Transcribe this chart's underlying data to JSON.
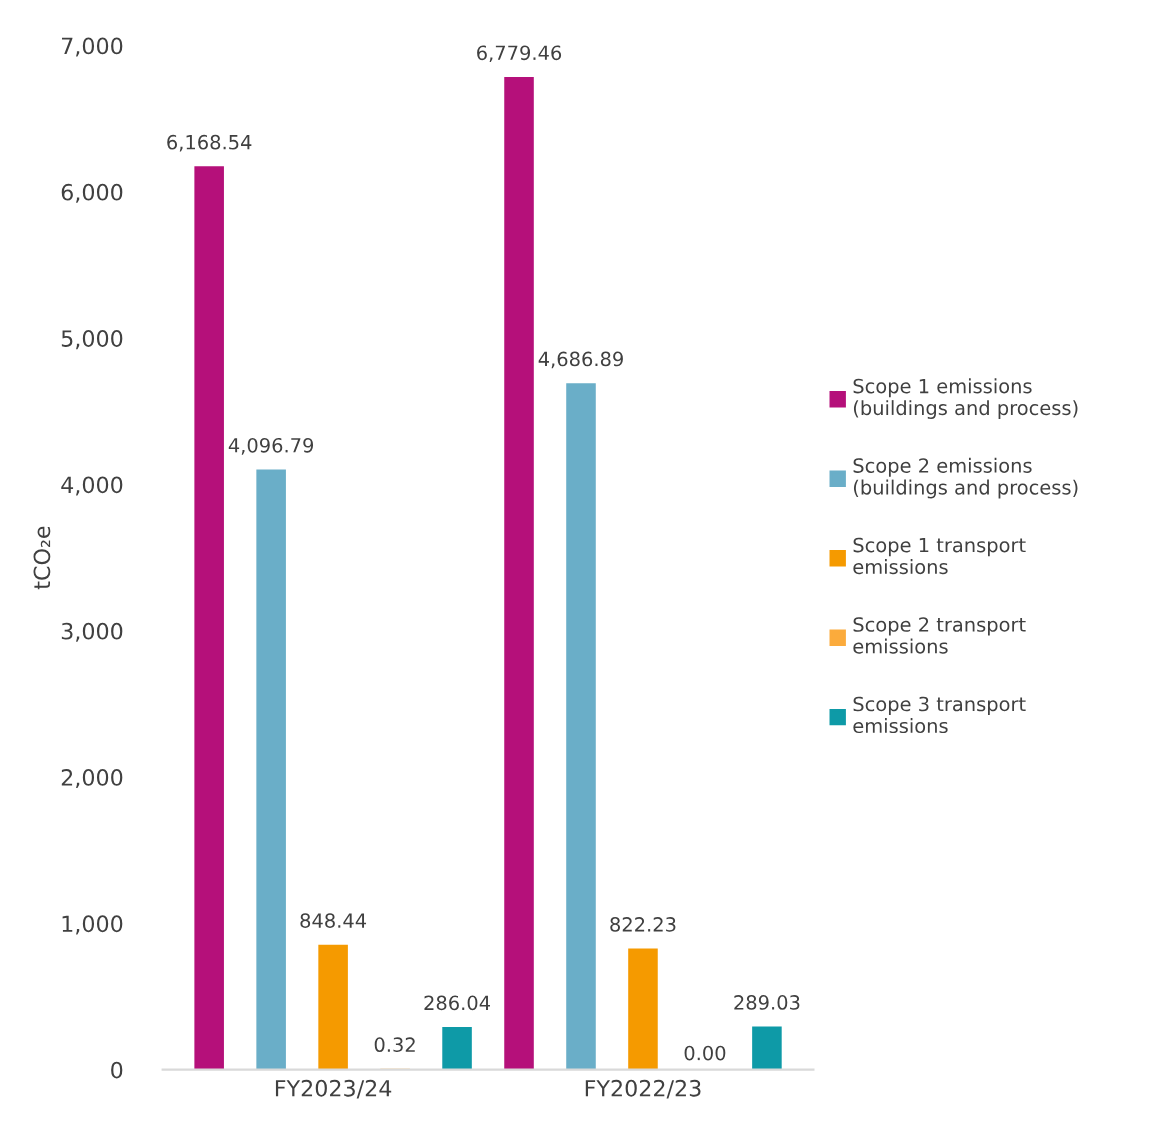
{
  "chart_data": {
    "type": "bar",
    "ylabel": "tCO₂e",
    "categories": [
      "FY2023/24",
      "FY2022/23"
    ],
    "series": [
      {
        "name": "Scope 1 emissions\n(buildings and process)",
        "color": "#b5107a",
        "values": [
          6168.54,
          6779.46
        ],
        "value_labels": [
          "6,168.54",
          "6,779.46"
        ]
      },
      {
        "name": "Scope 2 emissions\n(buildings and process)",
        "color": "#6aaec8",
        "values": [
          4096.79,
          4686.89
        ],
        "value_labels": [
          "4,096.79",
          "4,686.89"
        ]
      },
      {
        "name": "Scope 1 transport\nemissions",
        "color": "#f59a00",
        "values": [
          848.44,
          822.23
        ],
        "value_labels": [
          "848.44",
          "822.23"
        ]
      },
      {
        "name": "Scope 2 transport\nemissions",
        "color": "#fbab3c",
        "values": [
          0.32,
          0.0
        ],
        "value_labels": [
          "0.32",
          "0.00"
        ]
      },
      {
        "name": "Scope 3 transport\nemissions",
        "color": "#0e9aa7",
        "values": [
          286.04,
          289.03
        ],
        "value_labels": [
          "286.04",
          "289.03"
        ]
      }
    ],
    "ylim": [
      0,
      7000
    ],
    "yticks": [
      {
        "value": 0,
        "label": "0"
      },
      {
        "value": 1000,
        "label": "1,000"
      },
      {
        "value": 2000,
        "label": "2,000"
      },
      {
        "value": 3000,
        "label": "3,000"
      },
      {
        "value": 4000,
        "label": "4,000"
      },
      {
        "value": 5000,
        "label": "5,000"
      },
      {
        "value": 6000,
        "label": "6,000"
      },
      {
        "value": 7000,
        "label": "7,000"
      }
    ],
    "grid": false,
    "legend": "right"
  }
}
